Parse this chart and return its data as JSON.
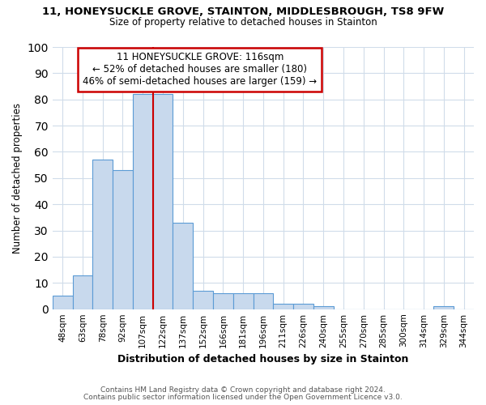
{
  "title_line1": "11, HONEYSUCKLE GROVE, STAINTON, MIDDLESBROUGH, TS8 9FW",
  "title_line2": "Size of property relative to detached houses in Stainton",
  "xlabel": "Distribution of detached houses by size in Stainton",
  "ylabel": "Number of detached properties",
  "bin_labels": [
    "48sqm",
    "63sqm",
    "78sqm",
    "92sqm",
    "107sqm",
    "122sqm",
    "137sqm",
    "152sqm",
    "166sqm",
    "181sqm",
    "196sqm",
    "211sqm",
    "226sqm",
    "240sqm",
    "255sqm",
    "270sqm",
    "285sqm",
    "300sqm",
    "314sqm",
    "329sqm",
    "344sqm"
  ],
  "bar_heights": [
    5,
    13,
    57,
    53,
    82,
    82,
    33,
    7,
    6,
    6,
    6,
    2,
    2,
    1,
    0,
    0,
    0,
    0,
    0,
    1,
    0
  ],
  "bar_color": "#c8d9ed",
  "bar_edge_color": "#5b9bd5",
  "annotation_line1": "11 HONEYSUCKLE GROVE: 116sqm",
  "annotation_line2": "← 52% of detached houses are smaller (180)",
  "annotation_line3": "46% of semi-detached houses are larger (159) →",
  "vline_color": "#cc0000",
  "vline_x": 4.5,
  "ylim": [
    0,
    100
  ],
  "yticks": [
    0,
    10,
    20,
    30,
    40,
    50,
    60,
    70,
    80,
    90,
    100
  ],
  "footnote1": "Contains HM Land Registry data © Crown copyright and database right 2024.",
  "footnote2": "Contains public sector information licensed under the Open Government Licence v3.0.",
  "annotation_box_color": "#ffffff",
  "annotation_box_edge_color": "#cc0000",
  "grid_color": "#d0dcea",
  "background_color": "#ffffff"
}
